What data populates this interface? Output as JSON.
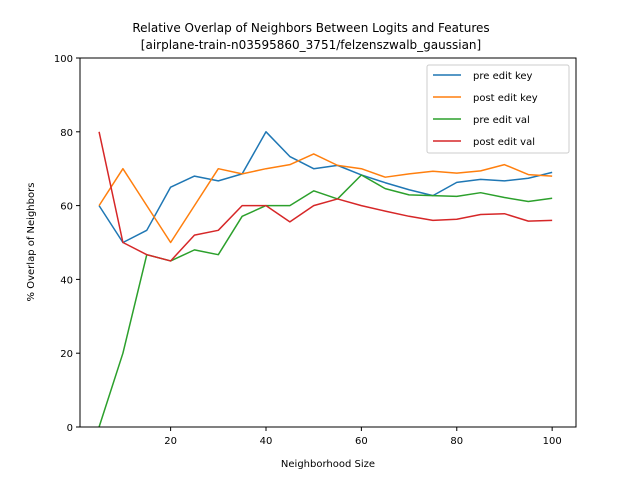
{
  "chart_data": {
    "type": "line",
    "title": "Relative Overlap of Neighbors Between Logits and Features",
    "subtitle": "[airplane-train-n03595860_3751/felzenszwalb_gaussian]",
    "xlabel": "Neighborhood Size",
    "ylabel": "% Overlap of Neighbors",
    "xlim": [
      1,
      105
    ],
    "ylim": [
      0,
      100
    ],
    "xticks": [
      20,
      40,
      60,
      80,
      100
    ],
    "yticks": [
      0,
      20,
      40,
      60,
      80,
      100
    ],
    "grid": false,
    "legend_position": "top-right",
    "x": [
      5,
      10,
      15,
      20,
      25,
      30,
      35,
      40,
      45,
      50,
      55,
      60,
      65,
      70,
      75,
      80,
      85,
      90,
      95,
      100
    ],
    "series": [
      {
        "name": "pre edit key",
        "color": "#1f77b4",
        "values": [
          60,
          50,
          53.3,
          65,
          68,
          66.7,
          68.6,
          80,
          73.3,
          70,
          70.9,
          68.3,
          66.2,
          64.3,
          62.7,
          66.3,
          67.1,
          66.7,
          67.4,
          69
        ]
      },
      {
        "name": "post edit key",
        "color": "#ff7f0e",
        "values": [
          60,
          70,
          60,
          50,
          60,
          70,
          68.6,
          70,
          71.1,
          74,
          70.9,
          70,
          67.7,
          68.6,
          69.3,
          68.8,
          69.4,
          71.1,
          68.4,
          68
        ]
      },
      {
        "name": "pre edit val",
        "color": "#2ca02c",
        "values": [
          0,
          20,
          46.7,
          45,
          48,
          46.7,
          57.1,
          60,
          60,
          64,
          61.8,
          68.3,
          64.6,
          62.9,
          62.7,
          62.5,
          63.5,
          62.2,
          61.1,
          62
        ]
      },
      {
        "name": "post edit val",
        "color": "#d62728",
        "values": [
          80,
          50,
          46.7,
          45,
          52,
          53.3,
          60,
          60,
          55.6,
          60,
          61.8,
          60,
          58.5,
          57.1,
          56,
          56.3,
          57.6,
          57.8,
          55.8,
          56
        ]
      }
    ]
  }
}
